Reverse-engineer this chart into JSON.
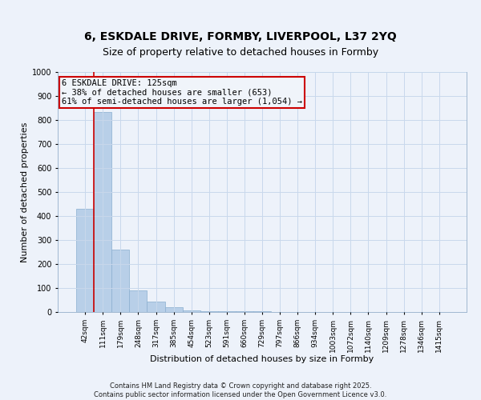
{
  "title1": "6, ESKDALE DRIVE, FORMBY, LIVERPOOL, L37 2YQ",
  "title2": "Size of property relative to detached houses in Formby",
  "xlabel": "Distribution of detached houses by size in Formby",
  "ylabel": "Number of detached properties",
  "categories": [
    "42sqm",
    "111sqm",
    "179sqm",
    "248sqm",
    "317sqm",
    "385sqm",
    "454sqm",
    "523sqm",
    "591sqm",
    "660sqm",
    "729sqm",
    "797sqm",
    "866sqm",
    "934sqm",
    "1003sqm",
    "1072sqm",
    "1140sqm",
    "1209sqm",
    "1278sqm",
    "1346sqm",
    "1415sqm"
  ],
  "values": [
    430,
    835,
    260,
    90,
    45,
    20,
    8,
    4,
    3,
    2,
    2,
    1,
    1,
    1,
    1,
    1,
    1,
    0,
    0,
    0,
    0
  ],
  "bar_color": "#b8cfe8",
  "bar_edge_color": "#8aafd0",
  "grid_color": "#c8d8ec",
  "annotation_box_text": "6 ESKDALE DRIVE: 125sqm\n← 38% of detached houses are smaller (653)\n61% of semi-detached houses are larger (1,054) →",
  "annotation_box_facecolor": "#f0f4fa",
  "annotation_box_edgecolor": "#cc0000",
  "vline_color": "#cc0000",
  "vline_x": 0.5,
  "ylim": [
    0,
    1000
  ],
  "yticks": [
    0,
    100,
    200,
    300,
    400,
    500,
    600,
    700,
    800,
    900,
    1000
  ],
  "footer_text": "Contains HM Land Registry data © Crown copyright and database right 2025.\nContains public sector information licensed under the Open Government Licence v3.0.",
  "background_color": "#edf2fa",
  "title1_fontsize": 10,
  "title2_fontsize": 9,
  "tick_fontsize": 6.5,
  "ylabel_fontsize": 8,
  "xlabel_fontsize": 8
}
